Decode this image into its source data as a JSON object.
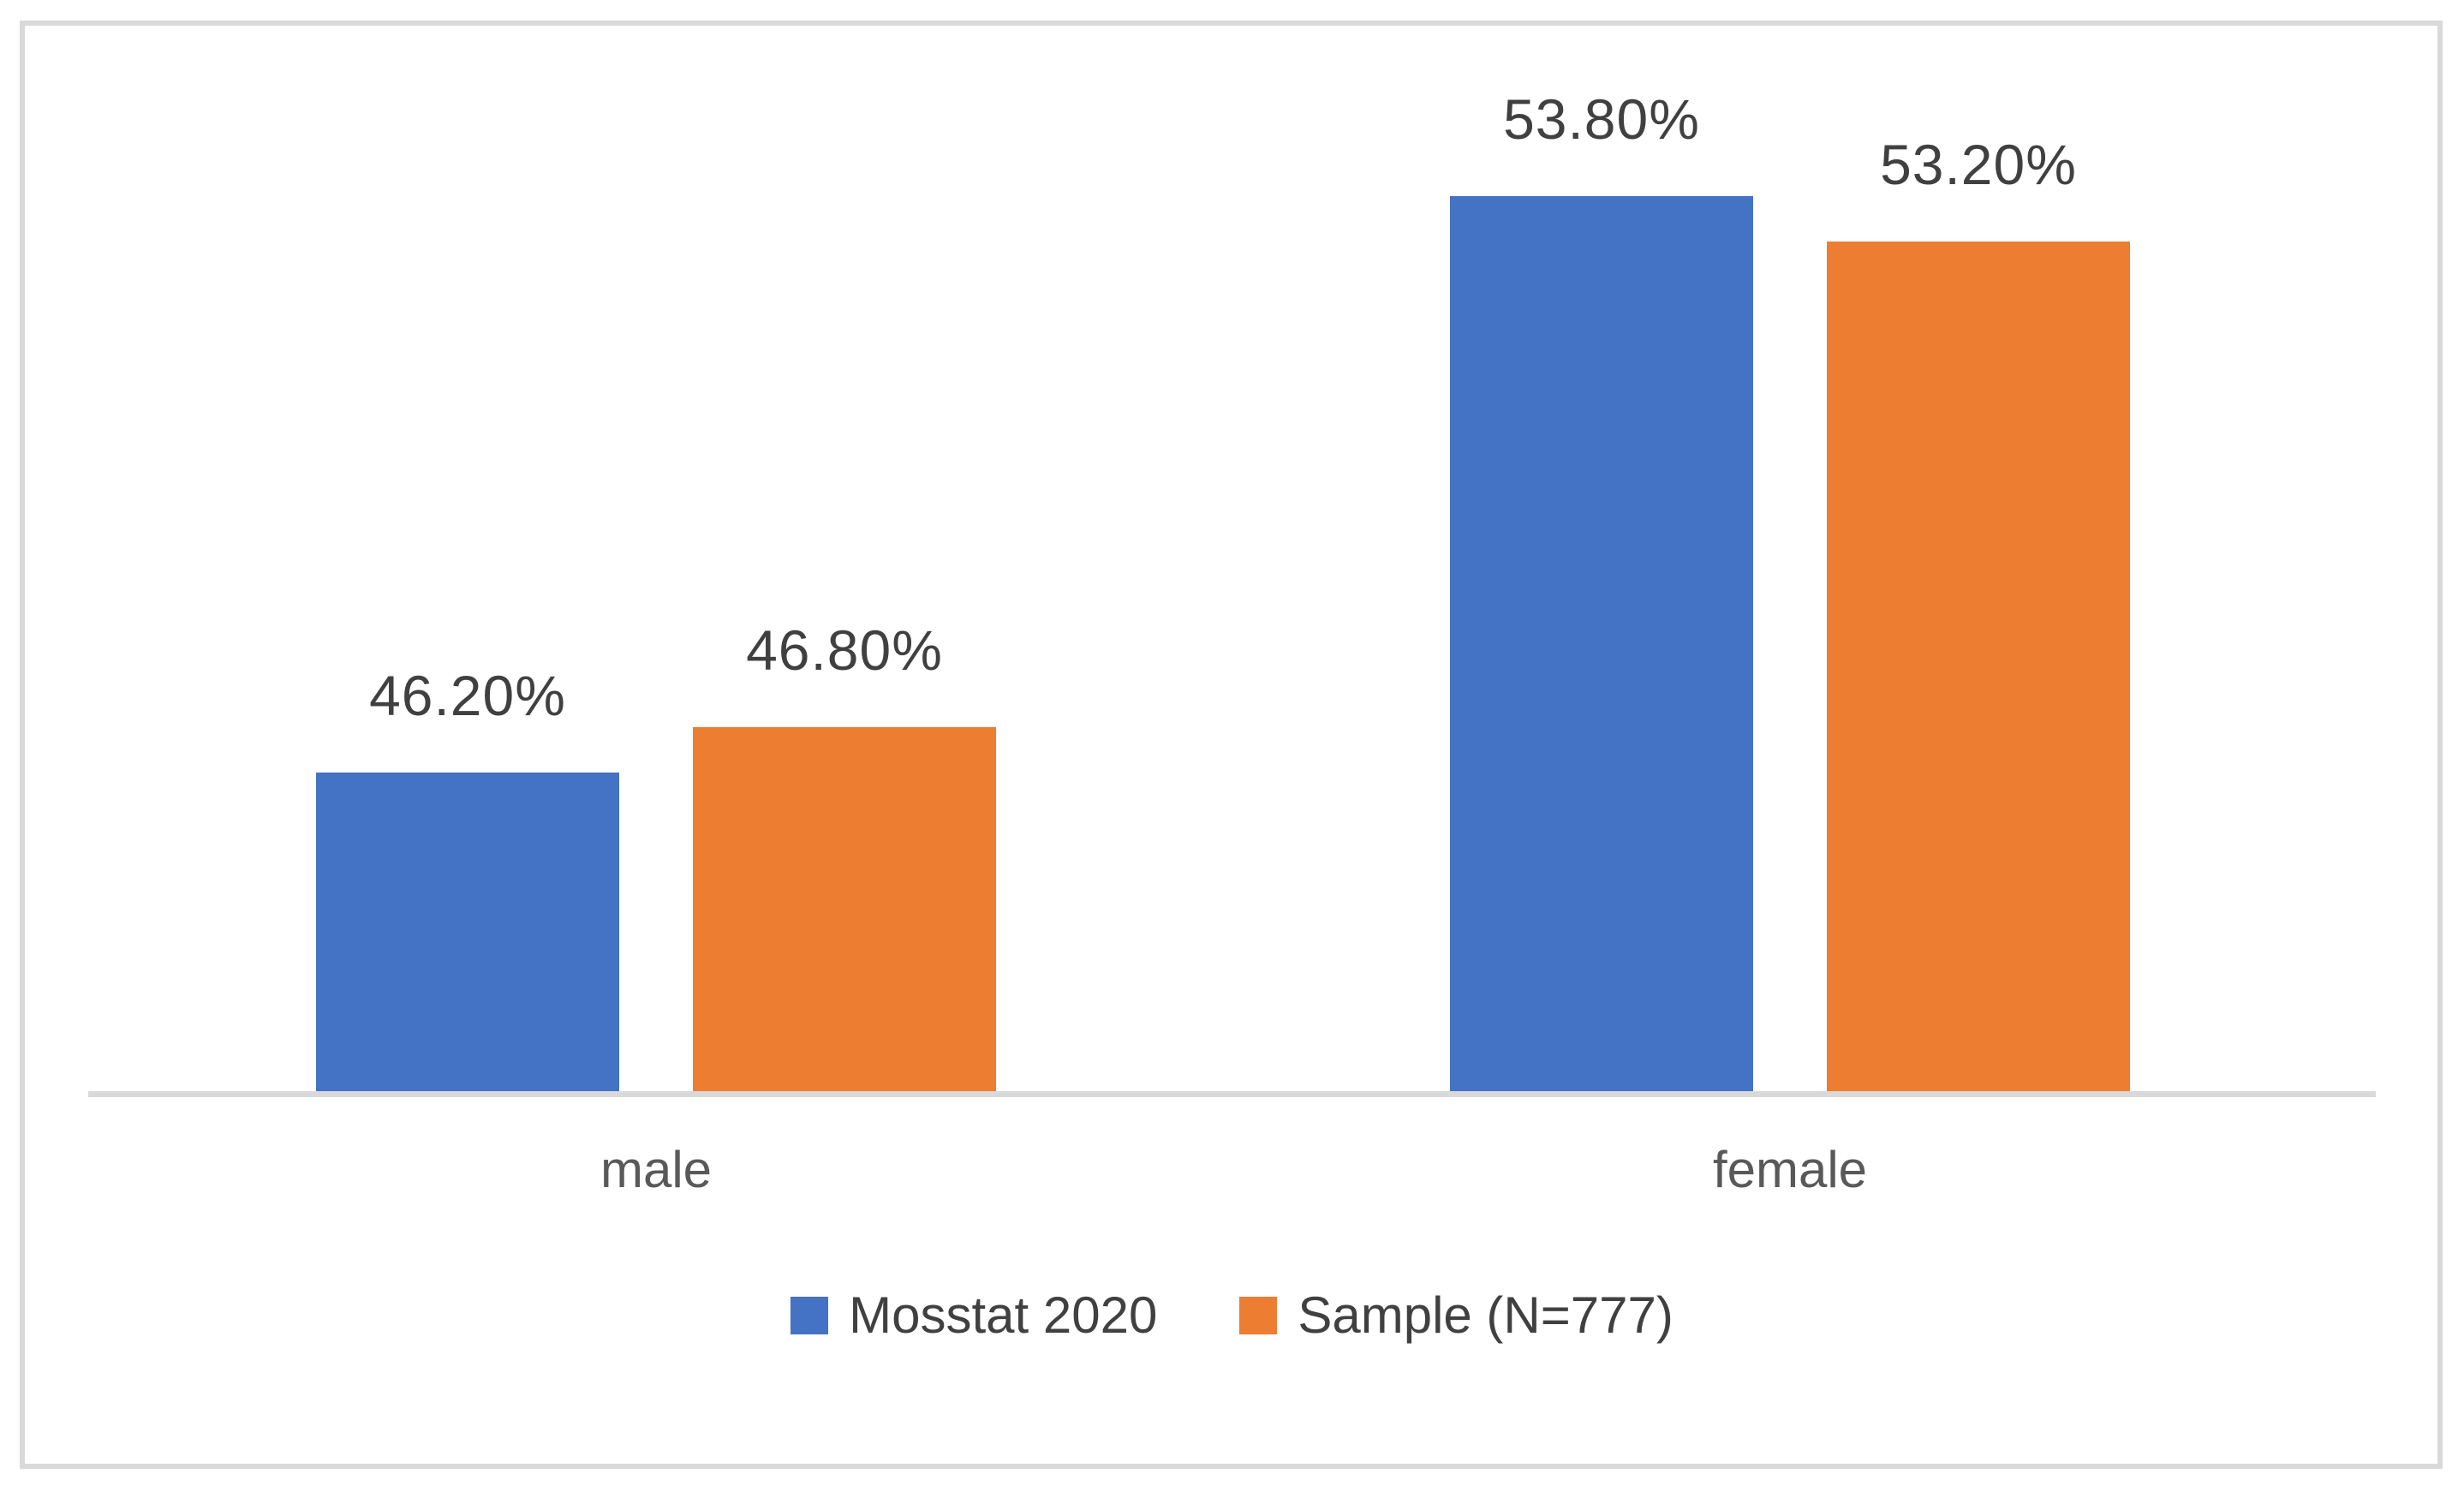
{
  "figure": {
    "background": "#FFFFFF",
    "border_color": "#D9D9D9"
  },
  "axis": {
    "baseline_color": "#D9D9D9",
    "y_axis_visible": false,
    "x_axis_labels_visible": true
  },
  "text_colors": {
    "data_label": "#404040",
    "category_label": "#595959",
    "legend_label": "#404040"
  },
  "chart_data": {
    "type": "bar",
    "title": "",
    "xlabel": "",
    "ylabel": "",
    "categories": [
      "male",
      "female"
    ],
    "series": [
      {
        "name": "Mosstat 2020",
        "color": "#4472C4",
        "values": [
          46.2,
          53.8
        ],
        "labels": [
          "46.20%",
          "53.80%"
        ]
      },
      {
        "name": "Sample (N=777)",
        "color": "#ED7D31",
        "values": [
          46.8,
          53.2
        ],
        "labels": [
          "46.80%",
          "53.20%"
        ]
      }
    ],
    "ylim": [
      42,
      56
    ],
    "grid": false,
    "legend_position": "bottom",
    "data_label_format": "0.00%"
  }
}
